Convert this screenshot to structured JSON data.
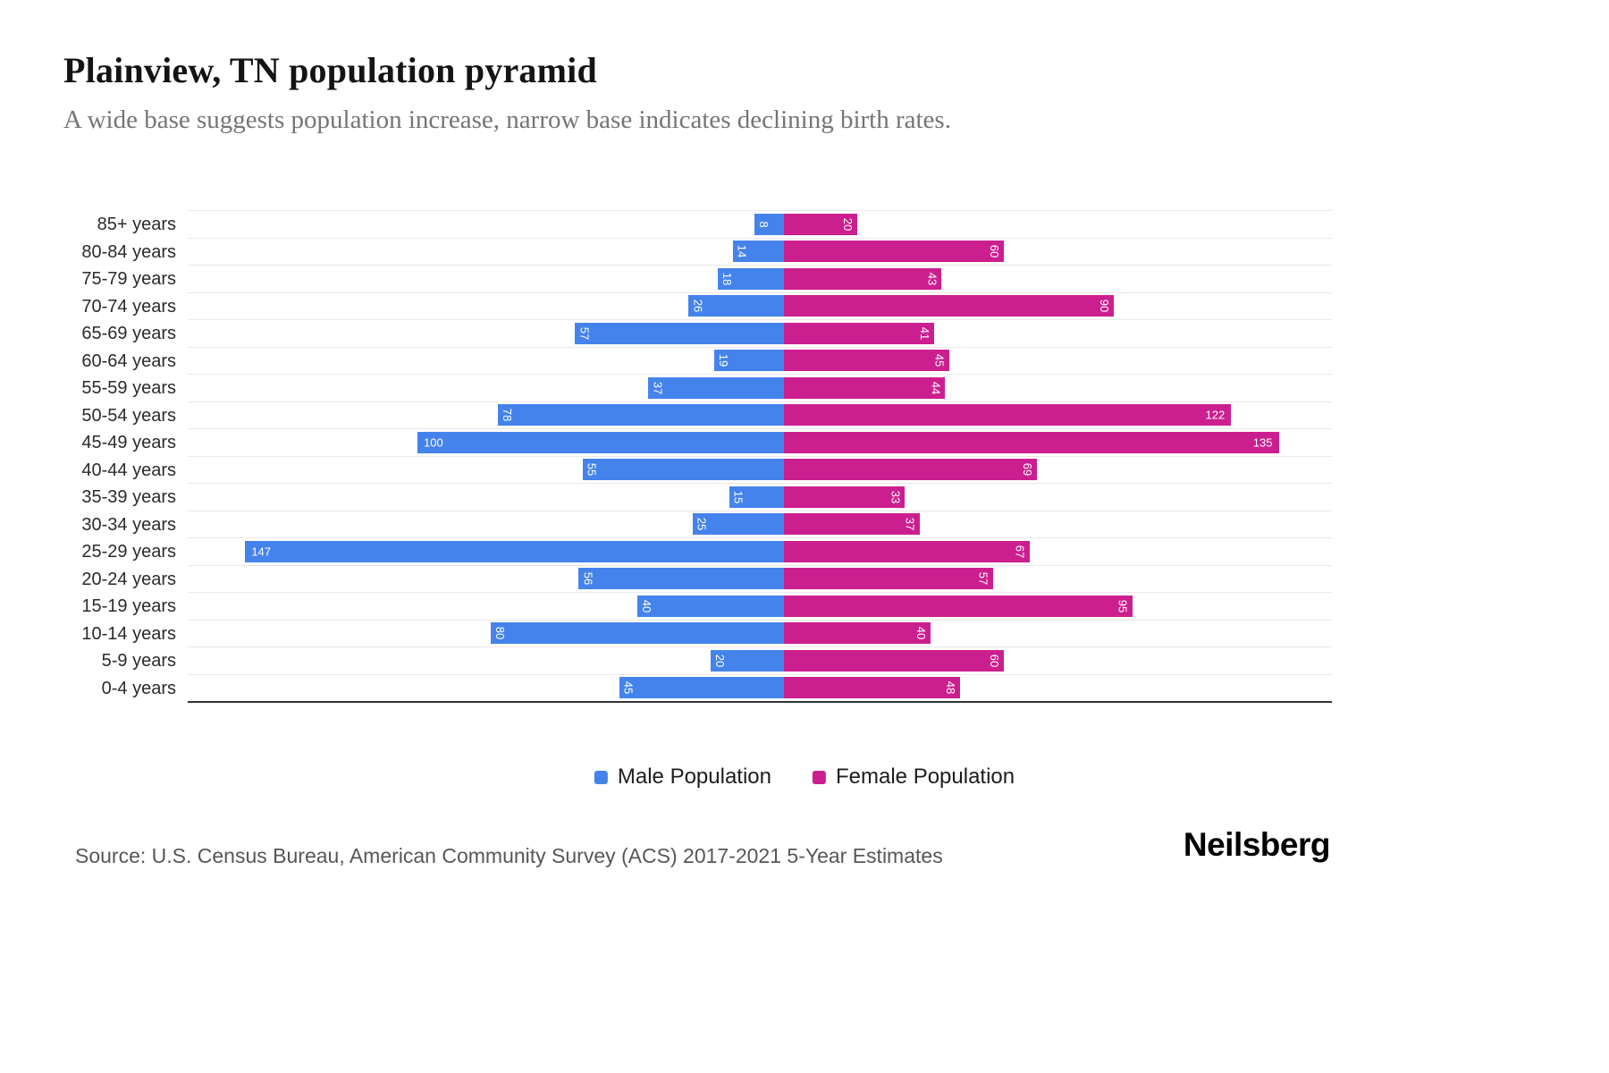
{
  "header": {
    "title": "Plainview, TN population pyramid",
    "subtitle": "A wide base suggests population increase, narrow base indicates declining birth rates."
  },
  "chart_data": {
    "type": "bar",
    "variant": "population-pyramid",
    "orientation": "horizontal",
    "categories": [
      "85+ years",
      "80-84 years",
      "75-79 years",
      "70-74 years",
      "65-69 years",
      "60-64 years",
      "55-59 years",
      "50-54 years",
      "45-49 years",
      "40-44 years",
      "35-39 years",
      "30-34 years",
      "25-29 years",
      "20-24 years",
      "15-19 years",
      "10-14 years",
      "5-9 years",
      "0-4 years"
    ],
    "series": [
      {
        "name": "Male Population",
        "color": "#4583EC",
        "side": "left",
        "values": [
          8,
          14,
          18,
          26,
          57,
          19,
          37,
          78,
          100,
          55,
          15,
          25,
          147,
          56,
          40,
          80,
          20,
          45
        ]
      },
      {
        "name": "Female Population",
        "color": "#CC1F8F",
        "side": "right",
        "values": [
          20,
          60,
          43,
          90,
          41,
          45,
          44,
          122,
          135,
          69,
          33,
          37,
          67,
          57,
          95,
          40,
          60,
          48
        ]
      }
    ],
    "value_axis_range_per_side": [
      0,
      160
    ],
    "grid": true,
    "gridline_color": "#e9e9e9",
    "axis_line_color": "#333333",
    "data_labels": "inside-outer-end, white, rotated 90deg when under 100",
    "legend_position": "bottom"
  },
  "legend": {
    "male_label": "Male Population",
    "female_label": "Female Population"
  },
  "footer": {
    "source": "Source: U.S. Census Bureau, American Community Survey (ACS) 2017-2021 5-Year Estimates",
    "logo": "Neilsberg"
  }
}
